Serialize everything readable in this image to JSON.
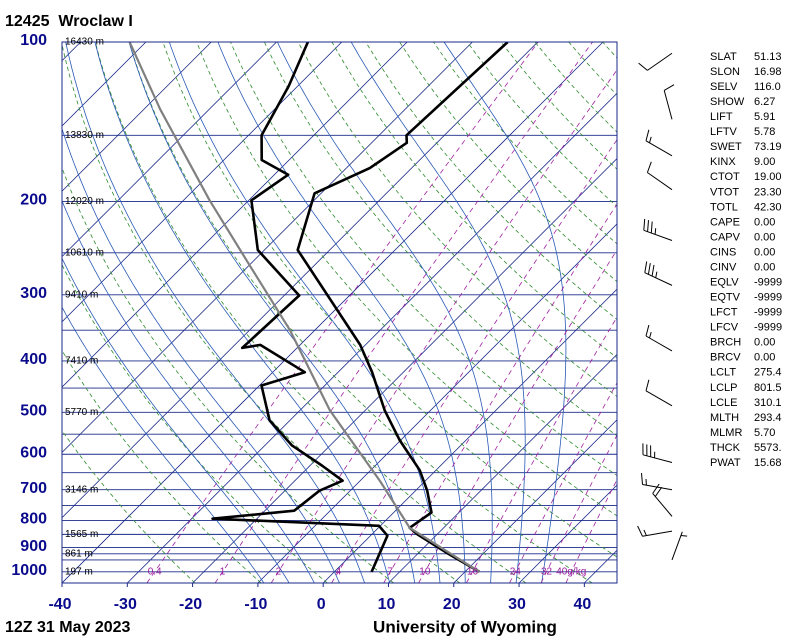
{
  "chart_data": {
    "type": "skewt",
    "title": "12425  Wroclaw I",
    "subtitle": "12Z 31 May 2023",
    "source": "University of Wyoming",
    "log_scale": true,
    "grid": true,
    "ylim": [
      1050,
      100
    ],
    "yticks": [
      100,
      200,
      300,
      400,
      500,
      600,
      700,
      800,
      900,
      1000
    ],
    "pressure_lines": [
      100,
      150,
      200,
      250,
      300,
      350,
      400,
      450,
      500,
      550,
      600,
      650,
      700,
      750,
      800,
      850,
      900,
      925,
      950,
      1000
    ],
    "xlim": [
      -40,
      45
    ],
    "xticks": [
      -40,
      -30,
      -20,
      -10,
      0,
      10,
      20,
      30,
      40
    ],
    "isotherms": [
      -120,
      -110,
      -100,
      -90,
      -80,
      -70,
      -60,
      -50,
      -40,
      -30,
      -20,
      -10,
      0,
      10,
      20,
      30,
      40
    ],
    "dry_adiabats": [
      250,
      260,
      270,
      280,
      290,
      300,
      310,
      320,
      330,
      340,
      350,
      360,
      370,
      380,
      390,
      400,
      410,
      420,
      430,
      440,
      450
    ],
    "moist_adiabats": [
      -12,
      -8,
      -4,
      0,
      4,
      8,
      12,
      16,
      20,
      24,
      28,
      32
    ],
    "mixing_ratios": [
      0.4,
      1,
      2,
      4,
      7,
      10,
      16,
      24,
      32,
      {
        "value": 40,
        "label": "40g/kg"
      }
    ],
    "heights": [
      {
        "value": 100,
        "label": "16430 m"
      },
      {
        "value": 150,
        "label": "13830 m"
      },
      {
        "value": 200,
        "label": "12020 m"
      },
      {
        "value": 250,
        "label": "10610 m"
      },
      {
        "value": 300,
        "label": "9410 m"
      },
      {
        "value": 400,
        "label": "7410 m"
      },
      {
        "value": 500,
        "label": "5770 m"
      },
      {
        "value": 700,
        "label": "3146 m"
      },
      {
        "value": 850,
        "label": "1565 m"
      },
      {
        "value": 925,
        "label": "861 m"
      },
      {
        "value": 1000,
        "label": "197 m"
      }
    ],
    "series": [
      {
        "color": "#000000",
        "width": 2.6,
        "pressure": [
          1000,
          925,
          850,
          826,
          773,
          703,
          643,
          565,
          496,
          420,
          373,
          247,
          193,
          173,
          155,
          150,
          100
        ],
        "values": [
          22.2,
          14.7,
          7,
          4.8,
          5.8,
          1.8,
          -2.5,
          -10.1,
          -17,
          -24.8,
          -30.8,
          -54.9,
          -61,
          -56.4,
          -54.6,
          -55.8,
          -54.6
        ]
      },
      {
        "color": "#000000",
        "width": 2.6,
        "pressure": [
          1000,
          855,
          819,
          794,
          767,
          703,
          673,
          630,
          577,
          518,
          445,
          420,
          373,
          378,
          301,
          247,
          199,
          178,
          167,
          150,
          121,
          100
        ],
        "values": [
          5.7,
          2.6,
          -0.2,
          -26.8,
          -15.5,
          -14.7,
          -12.7,
          -18.2,
          -25.9,
          -33.1,
          -39.7,
          -35.1,
          -46.1,
          -48.4,
          -47.7,
          -61,
          -69.6,
          -67.9,
          -74.2,
          -78,
          -81.4,
          -85.2
        ]
      },
      {
        "color": "#808080",
        "width": 2.2,
        "pressure": [
          1000,
          826,
          673,
          496,
          350,
          264,
          199,
          134,
          100
        ],
        "values": [
          22.2,
          4.8,
          -7,
          -25.4,
          -43.8,
          -59.9,
          -76,
          -97.5,
          -112.5
        ]
      }
    ],
    "winds": {
      "pressure": [
        105,
        140,
        164,
        190,
        237,
        288,
        383,
        486,
        622,
        700,
        786,
        838,
        950
      ],
      "direction": [
        235,
        345,
        300,
        305,
        290,
        295,
        300,
        300,
        285,
        280,
        320,
        260,
        20
      ],
      "speed": [
        10,
        10,
        15,
        10,
        35,
        35,
        15,
        10,
        35,
        15,
        20,
        15,
        5
      ]
    }
  },
  "indices": [
    [
      "SLAT",
      "51.13"
    ],
    [
      "SLON",
      "16.98"
    ],
    [
      "SELV",
      "116.0"
    ],
    [
      "SHOW",
      "6.27"
    ],
    [
      "LIFT",
      "5.91"
    ],
    [
      "LFTV",
      "5.78"
    ],
    [
      "SWET",
      "73.19"
    ],
    [
      "KINX",
      "9.00"
    ],
    [
      "CTOT",
      "19.00"
    ],
    [
      "VTOT",
      "23.30"
    ],
    [
      "TOTL",
      "42.30"
    ],
    [
      "CAPE",
      "0.00"
    ],
    [
      "CAPV",
      "0.00"
    ],
    [
      "CINS",
      "0.00"
    ],
    [
      "CINV",
      "0.00"
    ],
    [
      "EQLV",
      "-9999"
    ],
    [
      "EQTV",
      "-9999"
    ],
    [
      "LFCT",
      "-9999"
    ],
    [
      "LFCV",
      "-9999"
    ],
    [
      "BRCH",
      "0.00"
    ],
    [
      "BRCV",
      "0.00"
    ],
    [
      "LCLT",
      "275.4"
    ],
    [
      "LCLP",
      "801.5"
    ],
    [
      "LCLE",
      "310.1"
    ],
    [
      "MLTH",
      "293.4"
    ],
    [
      "MLMR",
      "5.70"
    ],
    [
      "THCK",
      "5573."
    ],
    [
      "PWAT",
      "15.68"
    ]
  ]
}
